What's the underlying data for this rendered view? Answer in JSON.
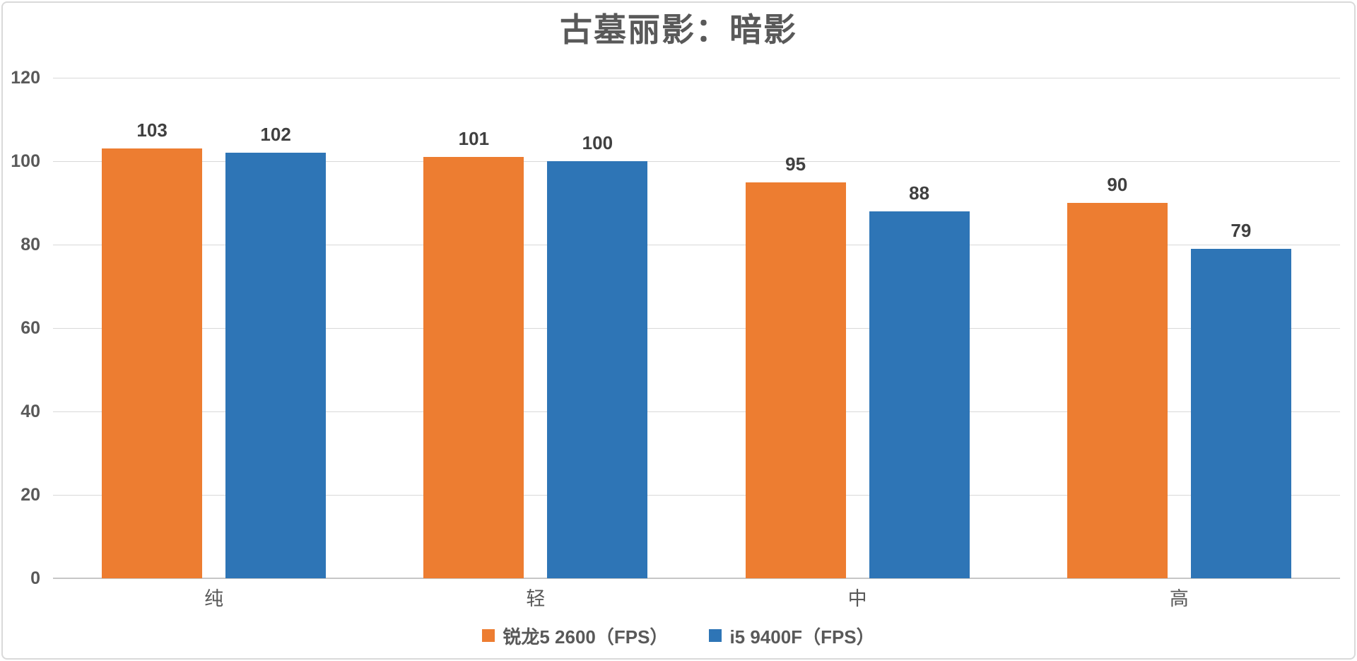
{
  "title": "古墓丽影：暗影",
  "chart_data": {
    "type": "bar",
    "title": "古墓丽影：暗影",
    "categories": [
      "纯",
      "轻",
      "中",
      "高"
    ],
    "series": [
      {
        "name": "锐龙5 2600（FPS）",
        "color": "#ED7D31",
        "values": [
          103,
          101,
          95,
          90
        ]
      },
      {
        "name": "i5 9400F（FPS）",
        "color": "#2E75B6",
        "values": [
          102,
          100,
          88,
          79
        ]
      }
    ],
    "ylabel": "",
    "xlabel": "",
    "ylim": [
      0,
      120
    ],
    "yticks": [
      0,
      20,
      40,
      60,
      80,
      100,
      120
    ],
    "grid": true,
    "data_labels": true,
    "legend_position": "bottom"
  }
}
